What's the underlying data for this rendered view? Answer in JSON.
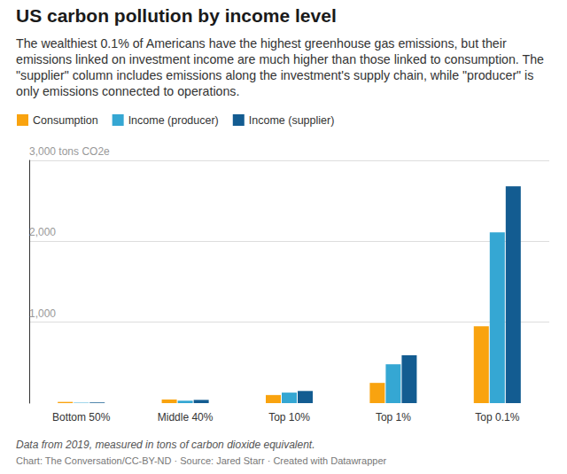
{
  "chart_data": {
    "type": "bar",
    "title": "US carbon pollution by income level",
    "subtitle": "The wealthiest 0.1% of Americans have the highest greenhouse gas emissions, but their emissions linked on investment income are much higher than those linked to consumption. The \"supplier\" column includes emissions along the investment's supply chain, while \"producer\" is only emissions connected to operations.",
    "categories": [
      "Bottom 50%",
      "Middle 40%",
      "Top 10%",
      "Top 1%",
      "Top 0.1%"
    ],
    "series": [
      {
        "name": "Consumption",
        "color": "#f9a30f",
        "values": [
          15,
          45,
          100,
          250,
          950
        ]
      },
      {
        "name": "Income (producer)",
        "color": "#35a7d3",
        "values": [
          5,
          30,
          130,
          480,
          2110
        ]
      },
      {
        "name": "Income (supplier)",
        "color": "#135c91",
        "values": [
          8,
          40,
          150,
          590,
          2680
        ]
      }
    ],
    "ylim": [
      0,
      3000
    ],
    "yticks": [
      {
        "value": 1000,
        "label": "1,000"
      },
      {
        "value": 2000,
        "label": "2,000"
      },
      {
        "value": 3000,
        "label": "3,000 tons CO2e"
      }
    ],
    "grid": true,
    "legend": "top-left",
    "note": "Data from 2019, measured in tons of carbon dioxide equivalent.",
    "source": "Chart: The Conversation/CC-BY-ND · Source: Jared Starr · Created with Datawrapper"
  }
}
